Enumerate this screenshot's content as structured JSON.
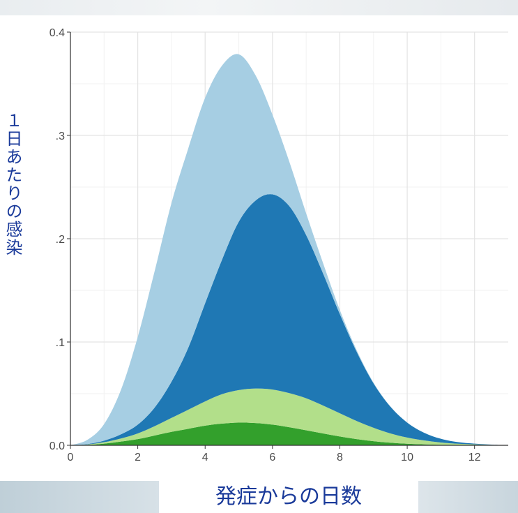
{
  "chart_data": {
    "type": "area",
    "stacked": true,
    "title": "",
    "xlabel": "発症からの日数",
    "ylabel": "１日あたりの感染",
    "xlim": [
      0,
      13
    ],
    "ylim": [
      0,
      0.4
    ],
    "xticks": [
      0,
      2,
      4,
      6,
      8,
      10,
      12
    ],
    "xtick_labels": [
      "0",
      "2",
      "4",
      "6",
      "8",
      "10",
      "12"
    ],
    "yticks": [
      0,
      0.1,
      0.2,
      0.3,
      0.4
    ],
    "ytick_labels": [
      "0.0",
      ".1",
      ".2",
      ".3",
      "0.4"
    ],
    "grid": true,
    "x": [
      0,
      0.5,
      1,
      1.5,
      2,
      2.5,
      3,
      3.5,
      4,
      4.5,
      5,
      5.5,
      6,
      6.5,
      7,
      7.5,
      8,
      8.5,
      9,
      9.5,
      10,
      10.5,
      11,
      11.5,
      12,
      12.5,
      13
    ],
    "series": [
      {
        "color": "#33a02c",
        "values": [
          0,
          0.0004,
          0.0016,
          0.0036,
          0.006,
          0.0095,
          0.013,
          0.016,
          0.019,
          0.021,
          0.022,
          0.0215,
          0.02,
          0.0175,
          0.0145,
          0.0115,
          0.0085,
          0.006,
          0.004,
          0.0025,
          0.0015,
          0.0009,
          0.0005,
          0.0003,
          0.0002,
          0.0001,
          0
        ]
      },
      {
        "color": "#b2df8a",
        "values": [
          0,
          0.0004,
          0.0014,
          0.003,
          0.0055,
          0.009,
          0.0135,
          0.0185,
          0.0235,
          0.0285,
          0.0315,
          0.0335,
          0.034,
          0.033,
          0.031,
          0.027,
          0.0225,
          0.0175,
          0.013,
          0.009,
          0.006,
          0.0038,
          0.0022,
          0.0012,
          0.0007,
          0.0003,
          0
        ]
      },
      {
        "color": "#1f78b4",
        "values": [
          0,
          0.0004,
          0.0015,
          0.004,
          0.0085,
          0.018,
          0.035,
          0.06,
          0.095,
          0.13,
          0.163,
          0.182,
          0.189,
          0.181,
          0.158,
          0.128,
          0.096,
          0.067,
          0.043,
          0.026,
          0.0145,
          0.0075,
          0.0036,
          0.0016,
          0.0007,
          0.0003,
          0
        ]
      },
      {
        "color": "#a6cee3",
        "values": [
          0,
          0.004,
          0.016,
          0.043,
          0.085,
          0.132,
          0.173,
          0.193,
          0.199,
          0.188,
          0.162,
          0.121,
          0.077,
          0.043,
          0.021,
          0.01,
          0.004,
          0.0016,
          0.0006,
          0.0002,
          0.0001,
          0,
          0,
          0,
          0,
          0,
          0
        ]
      }
    ],
    "totals_note": "stack peak ≈ 0.38 at x ≈ 4.9"
  }
}
